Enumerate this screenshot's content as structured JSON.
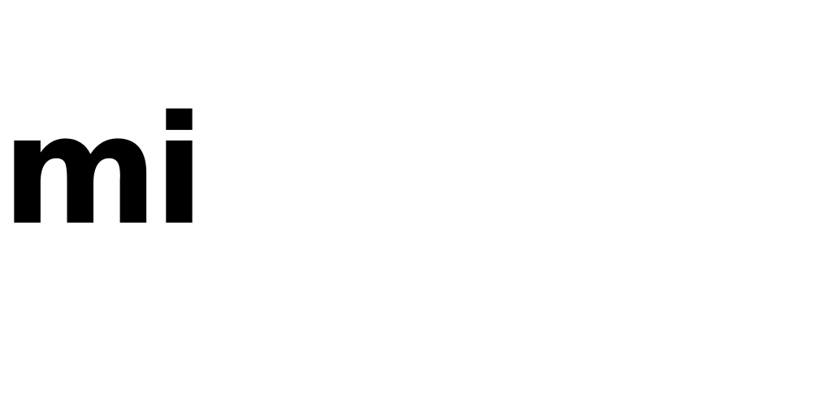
{
  "main": {
    "text": "mi"
  },
  "colors": {
    "background": "#ffffff",
    "text": "#000000"
  }
}
